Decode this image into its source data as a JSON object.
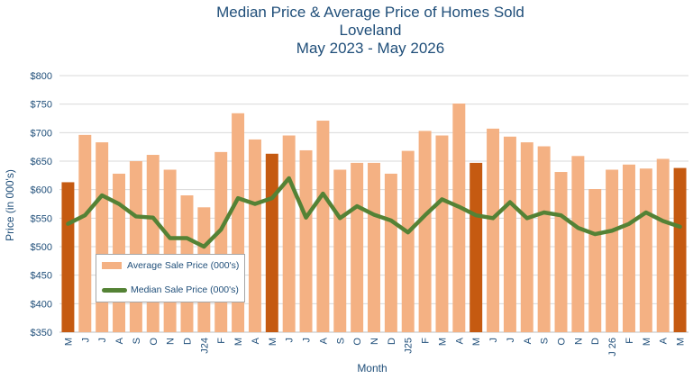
{
  "chart_data": {
    "type": "bar",
    "title": [
      "Median Price & Average Price of Homes Sold",
      "Loveland",
      "May 2023 - May 2026"
    ],
    "xlabel": "Month",
    "ylabel": "Price (in 000's)",
    "ylim": [
      350,
      800
    ],
    "yticks": [
      "$350",
      "$400",
      "$450",
      "$500",
      "$550",
      "$600",
      "$650",
      "$700",
      "$750",
      "$800"
    ],
    "ytick_values": [
      350,
      400,
      450,
      500,
      550,
      600,
      650,
      700,
      750,
      800
    ],
    "grid": true,
    "legend_position": "bottom-left",
    "categories": [
      "M",
      "J",
      "J",
      "A",
      "S",
      "O",
      "N",
      "D",
      "J24",
      "F",
      "M",
      "A",
      "M",
      "J",
      "J",
      "A",
      "S",
      "O",
      "N",
      "D",
      "J25",
      "F",
      "M",
      "A",
      "M",
      "J",
      "J",
      "A",
      "S",
      "O",
      "N",
      "D",
      "J 26",
      "F",
      "M",
      "A",
      "M"
    ],
    "series": [
      {
        "name": "Average Sale Price (000's)",
        "kind": "bar",
        "color": "#f4b183",
        "highlight_color": "#c55a11",
        "highlight_indices": [
          0,
          12,
          24,
          36
        ],
        "values": [
          613,
          696,
          683,
          628,
          650,
          661,
          635,
          590,
          569,
          666,
          734,
          688,
          663,
          695,
          669,
          721,
          635,
          647,
          647,
          628,
          668,
          703,
          695,
          751,
          647,
          707,
          693,
          683,
          676,
          631,
          659,
          601,
          635,
          644,
          637,
          654,
          638
        ]
      },
      {
        "name": "Median Sale Price (000's)",
        "kind": "line",
        "color": "#548235",
        "values": [
          540,
          555,
          590,
          575,
          553,
          551,
          515,
          515,
          500,
          530,
          585,
          575,
          585,
          620,
          551,
          593,
          550,
          571,
          556,
          546,
          525,
          555,
          583,
          570,
          555,
          550,
          578,
          550,
          560,
          555,
          533,
          522,
          528,
          540,
          560,
          545,
          535
        ]
      }
    ]
  }
}
